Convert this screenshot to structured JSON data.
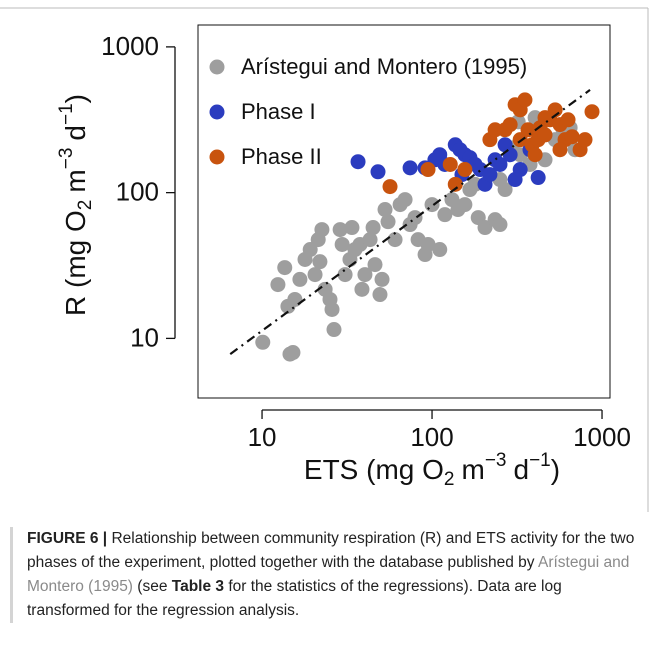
{
  "chart_data": {
    "type": "scatter",
    "xlabel": [
      "ETS (mg O",
      "2",
      "m",
      "−3",
      "d",
      "−1",
      ")"
    ],
    "ylabel": [
      "R (mg O",
      "2",
      "m",
      "−3",
      "d",
      "−1",
      ")"
    ],
    "log_x": true,
    "log_y": true,
    "xlim": [
      4.2,
      1114
    ],
    "ylim": [
      3.9,
      1413
    ],
    "xticks": [
      10,
      100,
      1000
    ],
    "yticks": [
      10,
      100,
      1000
    ],
    "legend": "top-left",
    "series": [
      {
        "name": "Arístegui and Montero (1995)",
        "color": "#9e9e9e",
        "x": [
          10.1,
          12.4,
          13.6,
          14.6,
          15.2,
          14.2,
          15.6,
          16.7,
          17.9,
          19.2,
          20.5,
          21.4,
          21.9,
          22.5,
          23.5,
          25.1,
          25.8,
          26.5,
          28.8,
          29.6,
          30.8,
          32.9,
          33.8,
          35.2,
          37.7,
          38.7,
          40.3,
          43.2,
          45.0,
          46.2,
          49.4,
          50.8,
          52.9,
          55.1,
          60.6,
          64.9,
          69.4,
          74.3,
          79.4,
          82.8,
          91.0,
          94.7,
          111,
          100,
          119,
          131,
          142,
          156,
          167,
          179,
          187,
          205,
          235,
          251,
          269,
          296,
          330,
          377,
          462,
          530,
          590,
          649,
          694,
          404,
          321,
          251,
          167
        ],
        "y": [
          9.4,
          23.4,
          30.6,
          7.8,
          8.0,
          16.6,
          18.5,
          25.4,
          34.8,
          40.7,
          27.4,
          47.6,
          33.6,
          55.8,
          21.7,
          18.5,
          15.8,
          11.5,
          55.8,
          44.1,
          27.4,
          34.8,
          57.6,
          40.7,
          44.1,
          21.7,
          27.4,
          47.6,
          57.6,
          32.1,
          20.0,
          25.4,
          76.6,
          63.2,
          47.6,
          82.8,
          89.6,
          60.4,
          67.4,
          47.6,
          37.6,
          44.1,
          40.7,
          82.8,
          70.6,
          89.6,
          76.6,
          82.8,
          105,
          114,
          67.4,
          57.6,
          65.3,
          60.4,
          105,
          203,
          182,
          156,
          168,
          231,
          270,
          279,
          197,
          327,
          306,
          123,
          156
        ]
      },
      {
        "name": "Phase I",
        "color": "#2b3cbf",
        "x": [
          36.7,
          48.1,
          74.3,
          91.0,
          104,
          111,
          137,
          146,
          156,
          167,
          179,
          192,
          205,
          219,
          235,
          251,
          269,
          288,
          308,
          330,
          377,
          421,
          119,
          150
        ],
        "y": [
          163,
          139,
          148,
          148,
          168,
          182,
          213,
          197,
          182,
          174,
          156,
          144,
          114,
          133,
          168,
          156,
          213,
          182,
          123,
          144,
          197,
          127,
          156,
          133
        ]
      },
      {
        "name": "Phase II",
        "color": "#c8530e",
        "x": [
          56.6,
          94.7,
          128,
          137,
          156,
          219,
          235,
          269,
          288,
          308,
          330,
          352,
          330,
          367,
          388,
          404,
          421,
          432,
          462,
          494,
          530,
          566,
          606,
          631,
          667,
          743,
          794,
          873,
          566,
          462
        ],
        "y": [
          110,
          144,
          156,
          114,
          144,
          231,
          270,
          270,
          293,
          401,
          370,
          433,
          231,
          270,
          213,
          182,
          231,
          279,
          249,
          316,
          370,
          293,
          231,
          316,
          242,
          197,
          231,
          359,
          197,
          327
        ]
      }
    ],
    "fit_line": {
      "x": [
        6.5,
        850
      ],
      "y": [
        7.8,
        507
      ]
    }
  },
  "caption": {
    "label": "FIGURE 6 |",
    "text": "Relationship between community respiration (R) and ETS activity for the two phases of the experiment, plotted together with the database published by",
    "reference": "Arístegui and Montero (1995)",
    "see": "(see",
    "table": "Table 3",
    "rest": "for the statistics of the regressions). Data are log transformed for the regression analysis."
  }
}
